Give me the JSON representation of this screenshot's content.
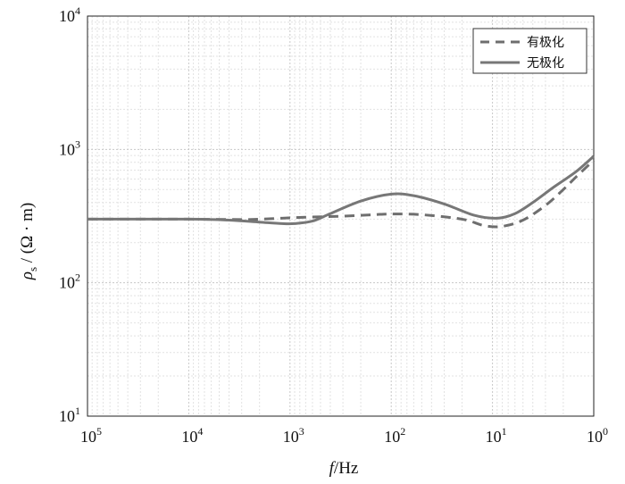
{
  "chart_data": {
    "type": "line",
    "x_scale": "log",
    "y_scale": "log",
    "x_reversed": true,
    "xlim": [
      100000,
      1
    ],
    "ylim": [
      10,
      10000
    ],
    "x_ticks": [
      {
        "base": "10",
        "exp": "5",
        "value": 100000
      },
      {
        "base": "10",
        "exp": "4",
        "value": 10000
      },
      {
        "base": "10",
        "exp": "3",
        "value": 1000
      },
      {
        "base": "10",
        "exp": "2",
        "value": 100
      },
      {
        "base": "10",
        "exp": "1",
        "value": 10
      },
      {
        "base": "10",
        "exp": "0",
        "value": 1
      }
    ],
    "y_ticks": [
      {
        "base": "10",
        "exp": "1",
        "value": 10
      },
      {
        "base": "10",
        "exp": "2",
        "value": 100
      },
      {
        "base": "10",
        "exp": "3",
        "value": 1000
      },
      {
        "base": "10",
        "exp": "4",
        "value": 10000
      }
    ],
    "xlabel": {
      "italic": "f",
      "rest": "/Hz"
    },
    "ylabel": {
      "symbol": "ρ",
      "sub": "s",
      "rest": " / (Ω · m)"
    },
    "grid": true,
    "legend_position": "top-right",
    "series": [
      {
        "name": "有极化",
        "style": "dashed",
        "color": "#6e6e6e",
        "points": [
          [
            100000,
            300
          ],
          [
            30000,
            300
          ],
          [
            10000,
            300
          ],
          [
            3000,
            298
          ],
          [
            2000,
            300
          ],
          [
            1200,
            305
          ],
          [
            700,
            310
          ],
          [
            300,
            316
          ],
          [
            150,
            324
          ],
          [
            100,
            328
          ],
          [
            50,
            324
          ],
          [
            20,
            300
          ],
          [
            12,
            268
          ],
          [
            8,
            265
          ],
          [
            5,
            295
          ],
          [
            3,
            380
          ],
          [
            2,
            500
          ],
          [
            1.5,
            620
          ],
          [
            1,
            830
          ]
        ]
      },
      {
        "name": "无极化",
        "style": "solid",
        "color": "#777777",
        "points": [
          [
            100000,
            300
          ],
          [
            30000,
            300
          ],
          [
            10000,
            300
          ],
          [
            4000,
            295
          ],
          [
            2000,
            285
          ],
          [
            1200,
            278
          ],
          [
            900,
            278
          ],
          [
            600,
            290
          ],
          [
            400,
            330
          ],
          [
            200,
            410
          ],
          [
            100,
            462
          ],
          [
            60,
            450
          ],
          [
            30,
            390
          ],
          [
            15,
            320
          ],
          [
            9,
            305
          ],
          [
            6,
            330
          ],
          [
            4,
            400
          ],
          [
            2.5,
            520
          ],
          [
            1.5,
            680
          ],
          [
            1,
            890
          ]
        ]
      }
    ]
  }
}
